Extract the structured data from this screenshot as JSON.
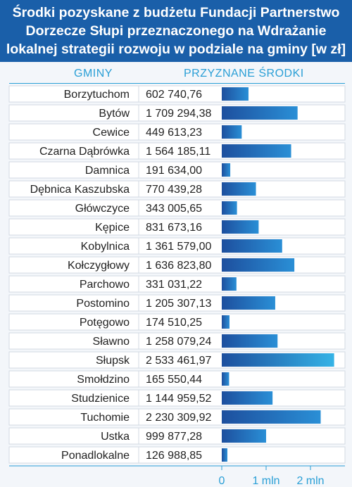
{
  "colors": {
    "title_bg": "#1a5fa9",
    "accent": "#2a9fd6",
    "bar_dark": "#1d4f9e",
    "bar_light": "#2a8fd6",
    "bar_max": "#35b3e6",
    "text": "#222222"
  },
  "chart_data": {
    "type": "bar",
    "orientation": "horizontal",
    "title_lines": [
      "Środki pozyskane z budżetu Fundacji Partnerstwo",
      "Dorzecze Słupi przeznaczonego na Wdrażanie",
      "lokalnej strategii rozwoju w podziale na gminy [w zł]"
    ],
    "column_headers": [
      "GMINY",
      "PRZYZNANE ŚRODKI"
    ],
    "categories": [
      "Borzytuchom",
      "Bytów",
      "Cewice",
      "Czarna Dąbrówka",
      "Damnica",
      "Dębnica Kaszubska",
      "Główczyce",
      "Kępice",
      "Kobylnica",
      "Kołczygłowy",
      "Parchowo",
      "Postomino",
      "Potęgowo",
      "Sławno",
      "Słupsk",
      "Smołdzino",
      "Studzienice",
      "Tuchomie",
      "Ustka",
      "Ponadlokalne"
    ],
    "value_labels": [
      "602 740,76",
      "1 709 294,38",
      "449 613,23",
      "1 564 185,11",
      "191 634,00",
      "770 439,28",
      "343 005,65",
      "831 673,16",
      "1 361 579,00",
      "1 636 823,80",
      "331 031,22",
      "1 205 307,13",
      "174 510,25",
      "1 258 079,24",
      "2 533 461,97",
      "165 550,44",
      "1 144 959,52",
      "2 230 309,92",
      "999 877,28",
      "126 988,85"
    ],
    "values": [
      602740.76,
      1709294.38,
      449613.23,
      1564185.11,
      191634.0,
      770439.28,
      343005.65,
      831673.16,
      1361579.0,
      1636823.8,
      331031.22,
      1205307.13,
      174510.25,
      1258079.24,
      2533461.97,
      165550.44,
      1144959.52,
      2230309.92,
      999877.28,
      126988.85
    ],
    "x_ticks": [
      0,
      1000000,
      2000000
    ],
    "x_tick_labels": [
      "0",
      "1 mln",
      "2 mln"
    ],
    "xlim": [
      0,
      2700000
    ]
  }
}
